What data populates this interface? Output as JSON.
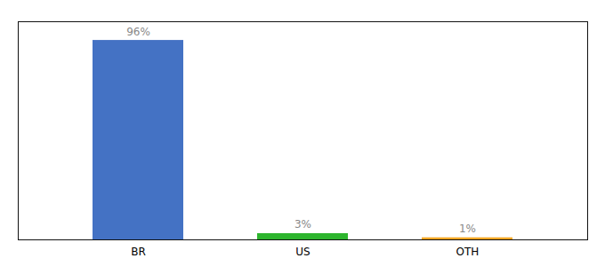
{
  "chart_data": {
    "type": "bar",
    "categories": [
      "BR",
      "US",
      "OTH"
    ],
    "values": [
      96,
      3,
      1
    ],
    "value_labels": [
      "96%",
      "3%",
      "1%"
    ],
    "colors": [
      "#4472c4",
      "#2db52d",
      "#f5a623"
    ],
    "ylim": [
      0,
      105
    ],
    "yticks": [],
    "grid": false,
    "data_labels": true,
    "tick_labels": "x"
  }
}
